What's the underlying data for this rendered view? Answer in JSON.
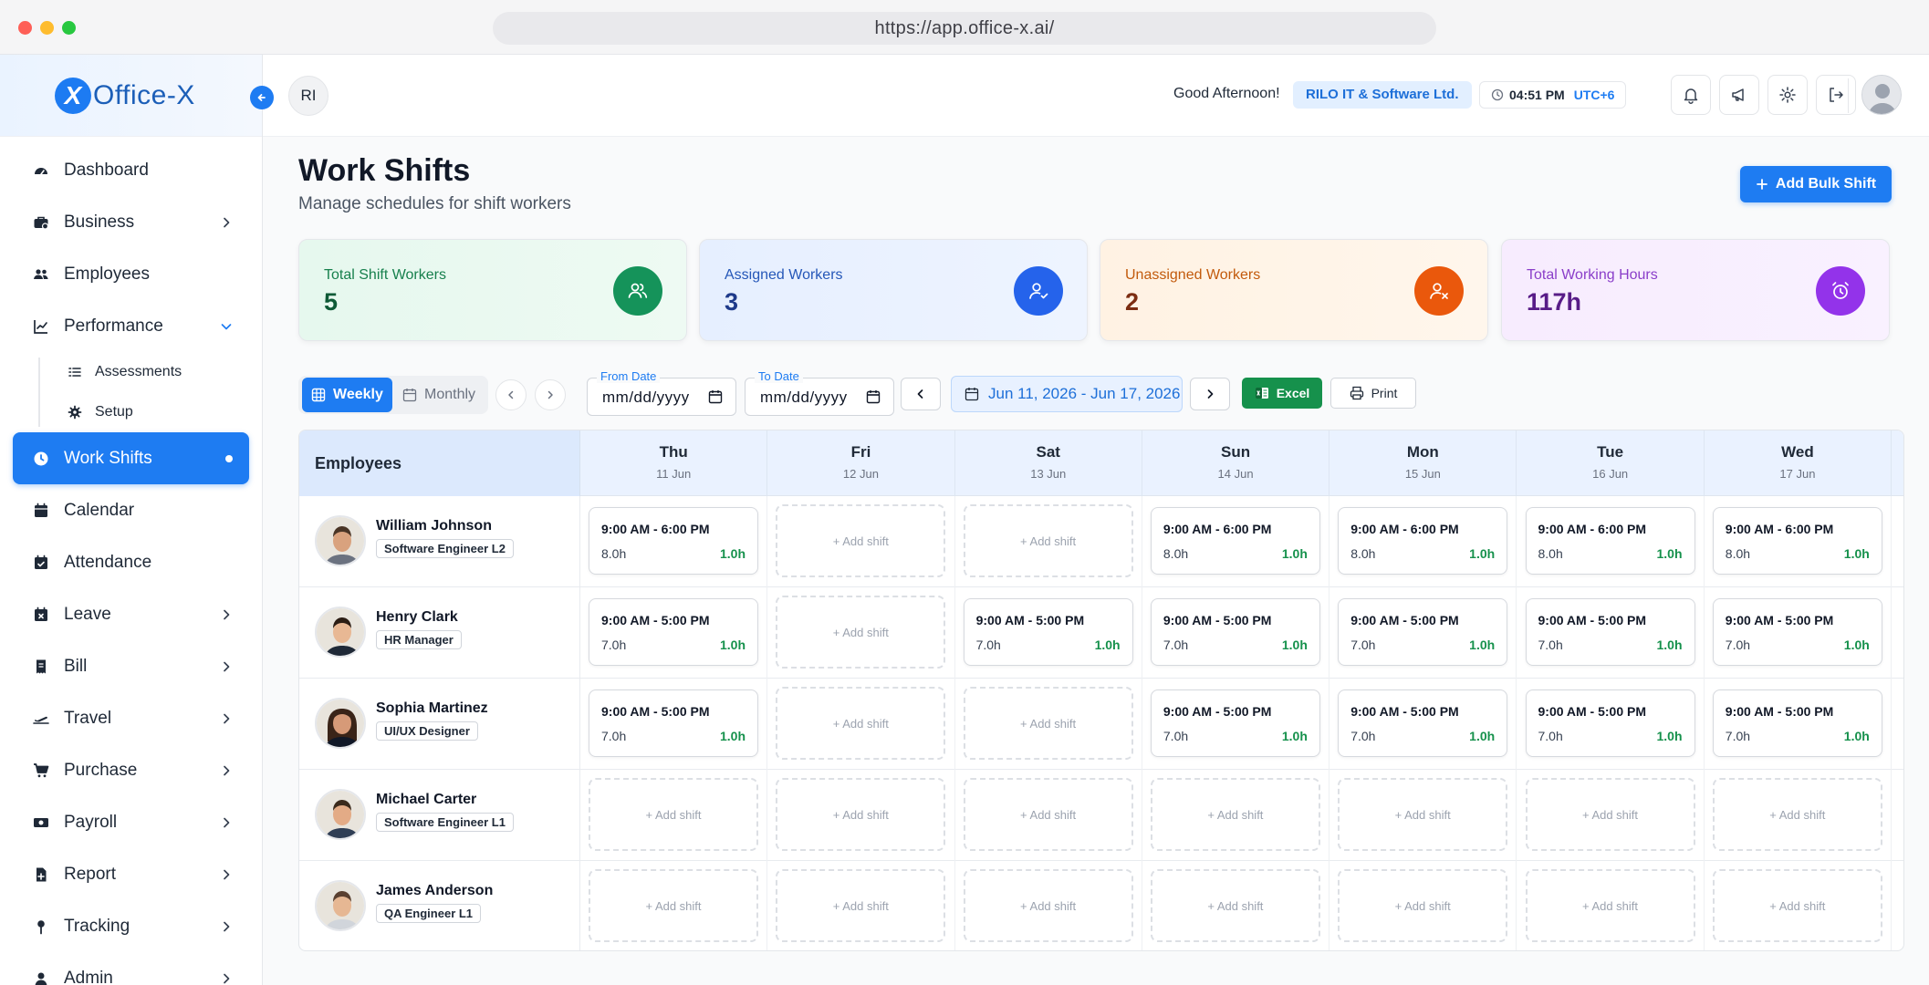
{
  "browser": {
    "url": "https://app.office-x.ai/"
  },
  "brand": {
    "mark": "X",
    "name": "Office-X"
  },
  "sidebar": {
    "items": [
      {
        "label": "Dashboard",
        "icon": "gauge-icon"
      },
      {
        "label": "Business",
        "icon": "briefcase-icon"
      },
      {
        "label": "Employees",
        "icon": "users-icon"
      },
      {
        "label": "Performance",
        "icon": "chart-line-icon"
      },
      {
        "label": "Work Shifts",
        "icon": "clock-icon"
      },
      {
        "label": "Calendar",
        "icon": "calendar-icon"
      },
      {
        "label": "Attendance",
        "icon": "calendar-check-icon"
      },
      {
        "label": "Leave",
        "icon": "calendar-x-icon"
      },
      {
        "label": "Bill",
        "icon": "receipt-icon"
      },
      {
        "label": "Travel",
        "icon": "plane-icon"
      },
      {
        "label": "Purchase",
        "icon": "cart-icon"
      },
      {
        "label": "Payroll",
        "icon": "money-icon"
      },
      {
        "label": "Report",
        "icon": "report-icon"
      },
      {
        "label": "Tracking",
        "icon": "pin-icon"
      },
      {
        "label": "Admin",
        "icon": "admin-icon"
      }
    ],
    "performance_sub": [
      {
        "label": "Assessments",
        "icon": "list-check-icon"
      },
      {
        "label": "Setup",
        "icon": "gear-icon"
      }
    ]
  },
  "header": {
    "initials": "RI",
    "greeting": "Good Afternoon!",
    "company": "RILO IT & Software Ltd.",
    "time": "04:51 PM",
    "timezone": "UTC+6"
  },
  "page": {
    "title": "Work Shifts",
    "subtitle": "Manage schedules for shift workers",
    "add_bulk_label": "Add Bulk Shift"
  },
  "stats": {
    "total": {
      "label": "Total Shift Workers",
      "value": "5"
    },
    "assigned": {
      "label": "Assigned Workers",
      "value": "3"
    },
    "unassigned": {
      "label": "Unassigned Workers",
      "value": "2"
    },
    "hours": {
      "label": "Total Working Hours",
      "value": "117h"
    }
  },
  "toolbar": {
    "weekly_label": "Weekly",
    "monthly_label": "Monthly",
    "from_label": "From Date",
    "from_value": "mm/dd/yyyy",
    "to_label": "To Date",
    "to_value": "mm/dd/yyyy",
    "range": "Jun 11, 2026 - Jun 17, 2026",
    "excel_label": "Excel",
    "print_label": "Print"
  },
  "table": {
    "employees_header": "Employees",
    "add_shift_label": "+ Add shift",
    "days": [
      {
        "day": "Thu",
        "date": "11 Jun"
      },
      {
        "day": "Fri",
        "date": "12 Jun"
      },
      {
        "day": "Sat",
        "date": "13 Jun"
      },
      {
        "day": "Sun",
        "date": "14 Jun"
      },
      {
        "day": "Mon",
        "date": "15 Jun"
      },
      {
        "day": "Tue",
        "date": "16 Jun"
      },
      {
        "day": "Wed",
        "date": "17 Jun"
      }
    ],
    "rows": [
      {
        "name": "William Johnson",
        "role": "Software Engineer L2",
        "shifts": [
          {
            "time": "9:00 AM - 6:00 PM",
            "hours": "8.0h",
            "ot": "1.0h"
          },
          null,
          null,
          {
            "time": "9:00 AM - 6:00 PM",
            "hours": "8.0h",
            "ot": "1.0h"
          },
          {
            "time": "9:00 AM - 6:00 PM",
            "hours": "8.0h",
            "ot": "1.0h"
          },
          {
            "time": "9:00 AM - 6:00 PM",
            "hours": "8.0h",
            "ot": "1.0h"
          },
          {
            "time": "9:00 AM - 6:00 PM",
            "hours": "8.0h",
            "ot": "1.0h"
          }
        ]
      },
      {
        "name": "Henry Clark",
        "role": "HR Manager",
        "shifts": [
          {
            "time": "9:00 AM - 5:00 PM",
            "hours": "7.0h",
            "ot": "1.0h"
          },
          null,
          {
            "time": "9:00 AM - 5:00 PM",
            "hours": "7.0h",
            "ot": "1.0h"
          },
          {
            "time": "9:00 AM - 5:00 PM",
            "hours": "7.0h",
            "ot": "1.0h"
          },
          {
            "time": "9:00 AM - 5:00 PM",
            "hours": "7.0h",
            "ot": "1.0h"
          },
          {
            "time": "9:00 AM - 5:00 PM",
            "hours": "7.0h",
            "ot": "1.0h"
          },
          {
            "time": "9:00 AM - 5:00 PM",
            "hours": "7.0h",
            "ot": "1.0h"
          }
        ]
      },
      {
        "name": "Sophia Martinez",
        "role": "UI/UX Designer",
        "shifts": [
          {
            "time": "9:00 AM - 5:00 PM",
            "hours": "7.0h",
            "ot": "1.0h"
          },
          null,
          null,
          {
            "time": "9:00 AM - 5:00 PM",
            "hours": "7.0h",
            "ot": "1.0h"
          },
          {
            "time": "9:00 AM - 5:00 PM",
            "hours": "7.0h",
            "ot": "1.0h"
          },
          {
            "time": "9:00 AM - 5:00 PM",
            "hours": "7.0h",
            "ot": "1.0h"
          },
          {
            "time": "9:00 AM - 5:00 PM",
            "hours": "7.0h",
            "ot": "1.0h"
          }
        ]
      },
      {
        "name": "Michael Carter",
        "role": "Software Engineer L1",
        "shifts": [
          null,
          null,
          null,
          null,
          null,
          null,
          null
        ]
      },
      {
        "name": "James Anderson",
        "role": "QA Engineer L1",
        "shifts": [
          null,
          null,
          null,
          null,
          null,
          null,
          null
        ]
      }
    ]
  },
  "colors": {
    "accent": "#1e7cf2",
    "overtime": "#16914c",
    "excel": "#16914c"
  }
}
